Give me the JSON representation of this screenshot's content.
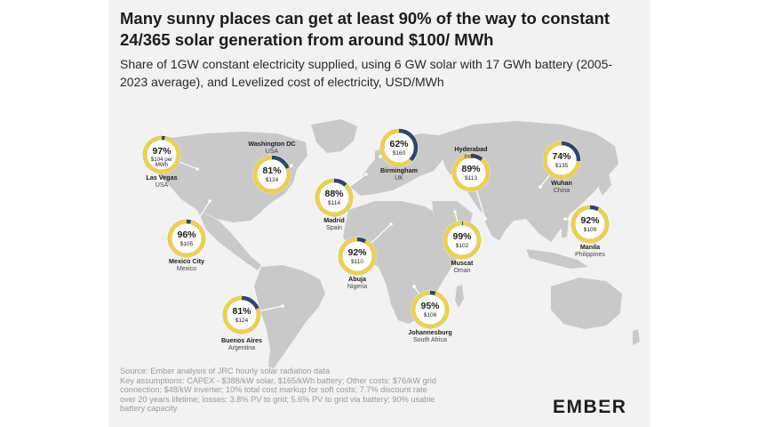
{
  "title": "Many sunny places can get at least 90% of the way to constant 24/365 solar generation from around $100/ MWh",
  "subtitle": "Share of 1GW constant electricity supplied, using 6 GW solar with 17 GWh battery (2005-2023 average), and Levelized cost of electricity, USD/MWh",
  "source_lines": [
    "Source: Ember analysis of JRC hourly solar radiation data",
    "Key assumptions: CAPEX - $388/kW solar, $165/kWh battery; Other costs: $76/kW grid",
    "connection; $48/kW inverter; 10% total cost markup for soft costs; 7.7% discount rate",
    "over 20 years lifetime; losses: 3.8% PV to grid; 5.6% PV to grid via battery; 90% usable",
    "battery capacity"
  ],
  "logo": "EMBER",
  "colors": {
    "share": "#f0d04a",
    "remainder": "#2d4670",
    "map": "#c9c9c9",
    "card": "#f2f2f2",
    "text": "#1c1c1c"
  },
  "chart_data": {
    "type": "donut-map",
    "title": "Many sunny places can get at least 90% of the way to constant 24/365 solar generation from around $100/ MWh",
    "series": [
      {
        "name": "Share of 1GW constant electricity supplied",
        "unit": "%"
      },
      {
        "name": "Levelized cost of electricity",
        "unit": "USD/MWh"
      }
    ],
    "locations": [
      {
        "city": "Las Vegas",
        "country": "USA",
        "share": 97,
        "cost_label": "$104 per MWh"
      },
      {
        "city": "Washington DC",
        "country": "USA",
        "share": 81,
        "cost_label": "$124"
      },
      {
        "city": "Mexico City",
        "country": "Mexico",
        "share": 96,
        "cost_label": "$105"
      },
      {
        "city": "Buenos Aires",
        "country": "Argentina",
        "share": 81,
        "cost_label": "$124"
      },
      {
        "city": "Madrid",
        "country": "Spain",
        "share": 88,
        "cost_label": "$114"
      },
      {
        "city": "Birmingham",
        "country": "UK",
        "share": 62,
        "cost_label": "$160"
      },
      {
        "city": "Abuja",
        "country": "Nigeria",
        "share": 92,
        "cost_label": "$110"
      },
      {
        "city": "Hyderabad",
        "country": "India",
        "share": 89,
        "cost_label": "$113"
      },
      {
        "city": "Muscat",
        "country": "Oman",
        "share": 99,
        "cost_label": "$102"
      },
      {
        "city": "Johannesburg",
        "country": "South Africa",
        "share": 95,
        "cost_label": "$106"
      },
      {
        "city": "Wuhan",
        "country": "China",
        "share": 74,
        "cost_label": "$135"
      },
      {
        "city": "Manila",
        "country": "Philippines",
        "share": 92,
        "cost_label": "$109"
      }
    ]
  }
}
